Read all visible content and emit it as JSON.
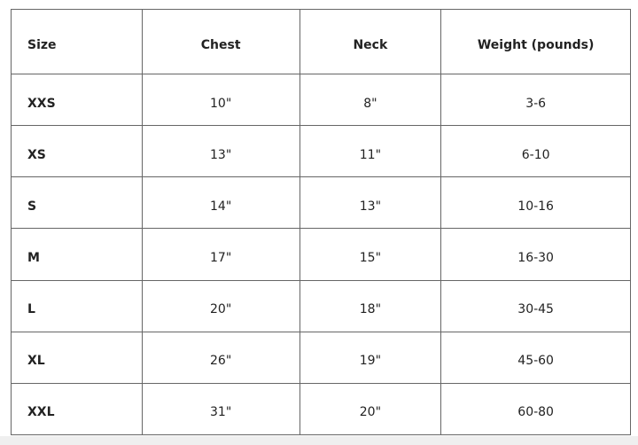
{
  "table": {
    "header": [
      "Size",
      "Chest",
      "Neck",
      "Weight (pounds)"
    ],
    "rows": [
      [
        "XXS",
        "10\"",
        "8\"",
        "3-6"
      ],
      [
        "XS",
        "13\"",
        "11\"",
        "6-10"
      ],
      [
        "S",
        "14\"",
        "13\"",
        "10-16"
      ],
      [
        "M",
        "17\"",
        "15\"",
        "16-30"
      ],
      [
        "L",
        "20\"",
        "18\"",
        "30-45"
      ],
      [
        "XL",
        "26\"",
        "19\"",
        "45-60"
      ],
      [
        "XXL",
        "31\"",
        "20\"",
        "60-80"
      ]
    ]
  }
}
